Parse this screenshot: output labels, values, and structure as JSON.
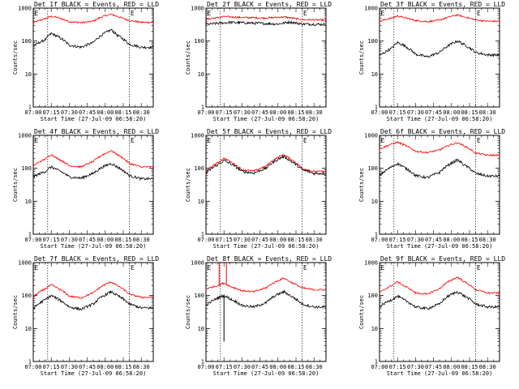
{
  "figure": {
    "background": "#ffffff",
    "events_color": "#000000",
    "lld_color": "#ff0000",
    "marker_line_style": "dotted"
  },
  "chart_data": [
    {
      "type": "line",
      "title": "Det 1f BLACK = Events, RED = LLD",
      "xlabel": "Start Time (27-Jul-09 06:58:20)",
      "ylabel": "Counts/sec",
      "xlim": [
        "07:00",
        "08:40"
      ],
      "ylim": [
        1,
        1000
      ],
      "yscale": "log",
      "x_ticks": [
        "07:00",
        "07:15",
        "07:30",
        "07:45",
        "08:00",
        "08:15",
        "08:30"
      ],
      "y_ticks": [
        "1",
        "10",
        "100",
        "1000"
      ],
      "vlines": [
        "07:12",
        "08:20"
      ],
      "annotations": [
        {
          "text": "E",
          "x": "07:00"
        },
        {
          "text": "E",
          "x": "08:20"
        }
      ],
      "series": [
        {
          "label": "Events",
          "color": "#000000",
          "x": [
            "07:00",
            "07:10",
            "07:15",
            "07:20",
            "07:30",
            "07:40",
            "07:50",
            "07:58",
            "08:05",
            "08:10",
            "08:20",
            "08:30",
            "08:40"
          ],
          "values": [
            70,
            110,
            170,
            140,
            75,
            65,
            90,
            160,
            220,
            150,
            80,
            65,
            65
          ]
        },
        {
          "label": "LLD",
          "color": "#ff0000",
          "x": [
            "07:00",
            "07:10",
            "07:15",
            "07:20",
            "07:30",
            "07:40",
            "07:50",
            "07:58",
            "08:05",
            "08:10",
            "08:20",
            "08:30",
            "08:40"
          ],
          "values": [
            360,
            480,
            560,
            520,
            390,
            360,
            400,
            560,
            650,
            560,
            420,
            370,
            370
          ]
        }
      ]
    },
    {
      "type": "line",
      "title": "Det 2f BLACK = Events, RED = LLD",
      "xlabel": "Start Time (27-Jul-09 06:58:20)",
      "ylabel": "Counts/sec",
      "xlim": [
        "07:00",
        "08:40"
      ],
      "ylim": [
        1,
        1000
      ],
      "yscale": "log",
      "x_ticks": [
        "07:00",
        "07:15",
        "07:30",
        "07:45",
        "08:00",
        "08:15",
        "08:30"
      ],
      "y_ticks": [
        "1",
        "10",
        "100",
        "1000"
      ],
      "vlines": [
        "07:12",
        "08:20"
      ],
      "annotations": [
        {
          "text": "E",
          "x": "07:00"
        },
        {
          "text": "E",
          "x": "08:20"
        }
      ],
      "series": [
        {
          "label": "Events",
          "color": "#000000",
          "x": [
            "07:00",
            "07:20",
            "07:40",
            "08:00",
            "08:10",
            "08:20",
            "08:40"
          ],
          "values": [
            320,
            370,
            350,
            330,
            380,
            330,
            320
          ]
        },
        {
          "label": "LLD",
          "color": "#ff0000",
          "x": [
            "07:00",
            "07:15",
            "07:30",
            "07:50",
            "08:05",
            "08:20",
            "08:40"
          ],
          "values": [
            450,
            550,
            520,
            500,
            540,
            450,
            430
          ]
        }
      ]
    },
    {
      "type": "line",
      "title": "Det 3f BLACK = Events, RED = LLD",
      "xlabel": "Start Time (27-Jul-09 06:58:20)",
      "ylabel": "Counts/sec",
      "xlim": [
        "07:00",
        "08:40"
      ],
      "ylim": [
        1,
        1000
      ],
      "yscale": "log",
      "x_ticks": [
        "07:00",
        "07:15",
        "07:30",
        "07:45",
        "08:00",
        "08:15",
        "08:30"
      ],
      "y_ticks": [
        "1",
        "10",
        "100",
        "1000"
      ],
      "vlines": [
        "07:12",
        "08:20"
      ],
      "annotations": [
        {
          "text": "E",
          "x": "07:00"
        },
        {
          "text": "E",
          "x": "08:20"
        }
      ],
      "series": [
        {
          "label": "Events",
          "color": "#000000",
          "x": [
            "07:00",
            "07:10",
            "07:15",
            "07:20",
            "07:30",
            "07:40",
            "07:50",
            "07:58",
            "08:05",
            "08:10",
            "08:20",
            "08:30",
            "08:40"
          ],
          "values": [
            35,
            60,
            90,
            75,
            40,
            33,
            45,
            75,
            100,
            80,
            45,
            38,
            38
          ]
        },
        {
          "label": "LLD",
          "color": "#ff0000",
          "x": [
            "07:00",
            "07:10",
            "07:15",
            "07:20",
            "07:30",
            "07:40",
            "07:50",
            "07:58",
            "08:05",
            "08:10",
            "08:20",
            "08:30",
            "08:40"
          ],
          "values": [
            400,
            500,
            580,
            520,
            420,
            390,
            430,
            540,
            620,
            550,
            440,
            400,
            400
          ]
        }
      ]
    },
    {
      "type": "line",
      "title": "Det 4f BLACK = Events, RED = LLD",
      "xlabel": "Start Time (27-Jul-09 06:58:20)",
      "ylabel": "Counts/sec",
      "xlim": [
        "07:00",
        "08:40"
      ],
      "ylim": [
        1,
        1000
      ],
      "yscale": "log",
      "x_ticks": [
        "07:00",
        "07:15",
        "07:30",
        "07:45",
        "08:00",
        "08:15",
        "08:30"
      ],
      "y_ticks": [
        "1",
        "10",
        "100",
        "1000"
      ],
      "vlines": [
        "07:12",
        "08:20"
      ],
      "annotations": [
        {
          "text": "E",
          "x": "07:00"
        },
        {
          "text": "E",
          "x": "08:20"
        }
      ],
      "series": [
        {
          "label": "Events",
          "color": "#000000",
          "x": [
            "07:00",
            "07:10",
            "07:15",
            "07:20",
            "07:30",
            "07:40",
            "07:50",
            "07:58",
            "08:05",
            "08:10",
            "08:20",
            "08:30",
            "08:40"
          ],
          "values": [
            55,
            80,
            110,
            90,
            55,
            50,
            70,
            110,
            140,
            110,
            60,
            48,
            48
          ]
        },
        {
          "label": "LLD",
          "color": "#ff0000",
          "x": [
            "07:00",
            "07:10",
            "07:15",
            "07:20",
            "07:30",
            "07:40",
            "07:50",
            "07:58",
            "08:05",
            "08:10",
            "08:20",
            "08:30",
            "08:40"
          ],
          "values": [
            120,
            190,
            260,
            200,
            120,
            110,
            160,
            260,
            340,
            260,
            140,
            110,
            110
          ]
        }
      ]
    },
    {
      "type": "line",
      "title": "Det 5f BLACK = Events, RED = LLD",
      "xlabel": "Start Time (27-Jul-09 06:58:20)",
      "ylabel": "Counts/sec",
      "xlim": [
        "07:00",
        "08:40"
      ],
      "ylim": [
        1,
        1000
      ],
      "yscale": "log",
      "x_ticks": [
        "07:00",
        "07:15",
        "07:30",
        "07:45",
        "08:00",
        "08:15",
        "08:30"
      ],
      "y_ticks": [
        "1",
        "10",
        "100",
        "1000"
      ],
      "vlines": [
        "07:12",
        "08:20"
      ],
      "annotations": [
        {
          "text": "E",
          "x": "07:00"
        },
        {
          "text": "E",
          "x": "08:20"
        }
      ],
      "series": [
        {
          "label": "Events",
          "color": "#000000",
          "x": [
            "07:00",
            "07:10",
            "07:15",
            "07:20",
            "07:30",
            "07:40",
            "07:50",
            "07:58",
            "08:05",
            "08:10",
            "08:20",
            "08:30",
            "08:40"
          ],
          "values": [
            70,
            130,
            170,
            140,
            80,
            72,
            100,
            170,
            230,
            170,
            90,
            70,
            70
          ]
        },
        {
          "label": "LLD",
          "color": "#ff0000",
          "x": [
            "07:00",
            "07:10",
            "07:15",
            "07:20",
            "07:30",
            "07:40",
            "07:50",
            "07:58",
            "08:05",
            "08:10",
            "08:20",
            "08:30",
            "08:40"
          ],
          "values": [
            80,
            150,
            200,
            160,
            90,
            82,
            115,
            195,
            260,
            195,
            100,
            80,
            80
          ]
        }
      ]
    },
    {
      "type": "line",
      "title": "Det 6f BLACK = Events, RED = LLD",
      "xlabel": "Start Time (27-Jul-09 06:58:20)",
      "ylabel": "Counts/sec",
      "xlim": [
        "07:00",
        "08:40"
      ],
      "ylim": [
        1,
        1000
      ],
      "yscale": "log",
      "x_ticks": [
        "07:00",
        "07:15",
        "07:30",
        "07:45",
        "08:00",
        "08:15",
        "08:30"
      ],
      "y_ticks": [
        "1",
        "10",
        "100",
        "1000"
      ],
      "vlines": [
        "07:12",
        "08:20"
      ],
      "annotations": [
        {
          "text": "E",
          "x": "07:00"
        },
        {
          "text": "E",
          "x": "08:20"
        }
      ],
      "series": [
        {
          "label": "Events",
          "color": "#000000",
          "x": [
            "07:00",
            "07:10",
            "07:15",
            "07:20",
            "07:30",
            "07:40",
            "07:50",
            "07:58",
            "08:05",
            "08:10",
            "08:20",
            "08:30",
            "08:40"
          ],
          "values": [
            60,
            110,
            140,
            110,
            60,
            52,
            75,
            130,
            180,
            130,
            70,
            58,
            58
          ]
        },
        {
          "label": "LLD",
          "color": "#ff0000",
          "x": [
            "07:00",
            "07:10",
            "07:15",
            "07:20",
            "07:30",
            "07:40",
            "07:50",
            "07:58",
            "08:05",
            "08:10",
            "08:20",
            "08:30",
            "08:40"
          ],
          "values": [
            380,
            540,
            620,
            520,
            330,
            300,
            360,
            500,
            600,
            490,
            290,
            250,
            250
          ]
        }
      ]
    },
    {
      "type": "line",
      "title": "Det 7f BLACK = Events, RED = LLD",
      "xlabel": "Start Time (27-Jul-09 06:58:20)",
      "ylabel": "Counts/sec",
      "xlim": [
        "07:00",
        "08:40"
      ],
      "ylim": [
        1,
        1000
      ],
      "yscale": "log",
      "x_ticks": [
        "07:00",
        "07:15",
        "07:30",
        "07:45",
        "08:00",
        "08:15",
        "08:30"
      ],
      "y_ticks": [
        "1",
        "10",
        "100",
        "1000"
      ],
      "vlines": [
        "07:12",
        "08:20"
      ],
      "annotations": [
        {
          "text": "E",
          "x": "07:00"
        },
        {
          "text": "E",
          "x": "08:20"
        }
      ],
      "series": [
        {
          "label": "Events",
          "color": "#000000",
          "x": [
            "07:00",
            "07:10",
            "07:15",
            "07:20",
            "07:30",
            "07:40",
            "07:50",
            "07:58",
            "08:05",
            "08:10",
            "08:20",
            "08:30",
            "08:40"
          ],
          "values": [
            40,
            75,
            100,
            80,
            45,
            38,
            55,
            95,
            130,
            100,
            55,
            42,
            42
          ]
        },
        {
          "label": "LLD",
          "color": "#ff0000",
          "x": [
            "07:00",
            "07:10",
            "07:15",
            "07:20",
            "07:30",
            "07:40",
            "07:50",
            "07:58",
            "08:05",
            "08:10",
            "08:20",
            "08:30",
            "08:40"
          ],
          "values": [
            90,
            160,
            210,
            170,
            95,
            85,
            120,
            200,
            260,
            200,
            110,
            88,
            88
          ]
        }
      ]
    },
    {
      "type": "line",
      "title": "Det 8f BLACK = Events, RED = LLD",
      "xlabel": "Start Time (27-Jul-09 06:58:20)",
      "ylabel": "Counts/sec",
      "xlim": [
        "07:00",
        "08:40"
      ],
      "ylim": [
        1,
        1000
      ],
      "yscale": "log",
      "x_ticks": [
        "07:00",
        "07:15",
        "07:30",
        "07:45",
        "08:00",
        "08:15",
        "08:30"
      ],
      "y_ticks": [
        "1",
        "10",
        "100",
        "1000"
      ],
      "vlines": [
        "07:12",
        "08:20"
      ],
      "annotations": [
        {
          "text": "E",
          "x": "07:00"
        },
        {
          "text": "E",
          "x": "08:20"
        }
      ],
      "spikes": [
        {
          "series": "LLD",
          "x": "07:11",
          "value": 1000
        },
        {
          "series": "LLD",
          "x": "07:17",
          "value": 1000
        },
        {
          "series": "Events",
          "x": "07:15",
          "value": 4
        }
      ],
      "series": [
        {
          "label": "Events",
          "color": "#000000",
          "x": [
            "07:00",
            "07:10",
            "07:15",
            "07:20",
            "07:30",
            "07:40",
            "07:50",
            "07:58",
            "08:05",
            "08:10",
            "08:20",
            "08:30",
            "08:40"
          ],
          "values": [
            50,
            85,
            100,
            80,
            50,
            45,
            60,
            100,
            130,
            100,
            55,
            45,
            45
          ]
        },
        {
          "label": "LLD",
          "color": "#ff0000",
          "x": [
            "07:00",
            "07:10",
            "07:15",
            "07:20",
            "07:30",
            "07:40",
            "07:50",
            "07:58",
            "08:05",
            "08:10",
            "08:20",
            "08:30",
            "08:40"
          ],
          "values": [
            160,
            200,
            240,
            190,
            140,
            130,
            170,
            260,
            340,
            260,
            170,
            150,
            150
          ]
        }
      ]
    },
    {
      "type": "line",
      "title": "Det 9f BLACK = Events, RED = LLD",
      "xlabel": "Start Time (27-Jul-09 06:58:20)",
      "ylabel": "Counts/sec",
      "xlim": [
        "07:00",
        "08:40"
      ],
      "ylim": [
        1,
        1000
      ],
      "yscale": "log",
      "x_ticks": [
        "07:00",
        "07:15",
        "07:30",
        "07:45",
        "08:00",
        "08:15",
        "08:30"
      ],
      "y_ticks": [
        "1",
        "10",
        "100",
        "1000"
      ],
      "vlines": [
        "07:12",
        "08:20"
      ],
      "annotations": [
        {
          "text": "E",
          "x": "07:00"
        },
        {
          "text": "E",
          "x": "08:20"
        }
      ],
      "series": [
        {
          "label": "Events",
          "color": "#000000",
          "x": [
            "07:00",
            "07:10",
            "07:15",
            "07:20",
            "07:30",
            "07:40",
            "07:50",
            "07:58",
            "08:05",
            "08:10",
            "08:20",
            "08:30",
            "08:40"
          ],
          "values": [
            45,
            75,
            95,
            75,
            45,
            40,
            55,
            100,
            130,
            100,
            55,
            45,
            45
          ]
        },
        {
          "label": "LLD",
          "color": "#ff0000",
          "x": [
            "07:00",
            "07:10",
            "07:15",
            "07:20",
            "07:30",
            "07:40",
            "07:50",
            "07:58",
            "08:05",
            "08:10",
            "08:20",
            "08:30",
            "08:40"
          ],
          "values": [
            120,
            200,
            260,
            200,
            120,
            110,
            160,
            270,
            360,
            270,
            150,
            120,
            120
          ]
        }
      ]
    }
  ]
}
